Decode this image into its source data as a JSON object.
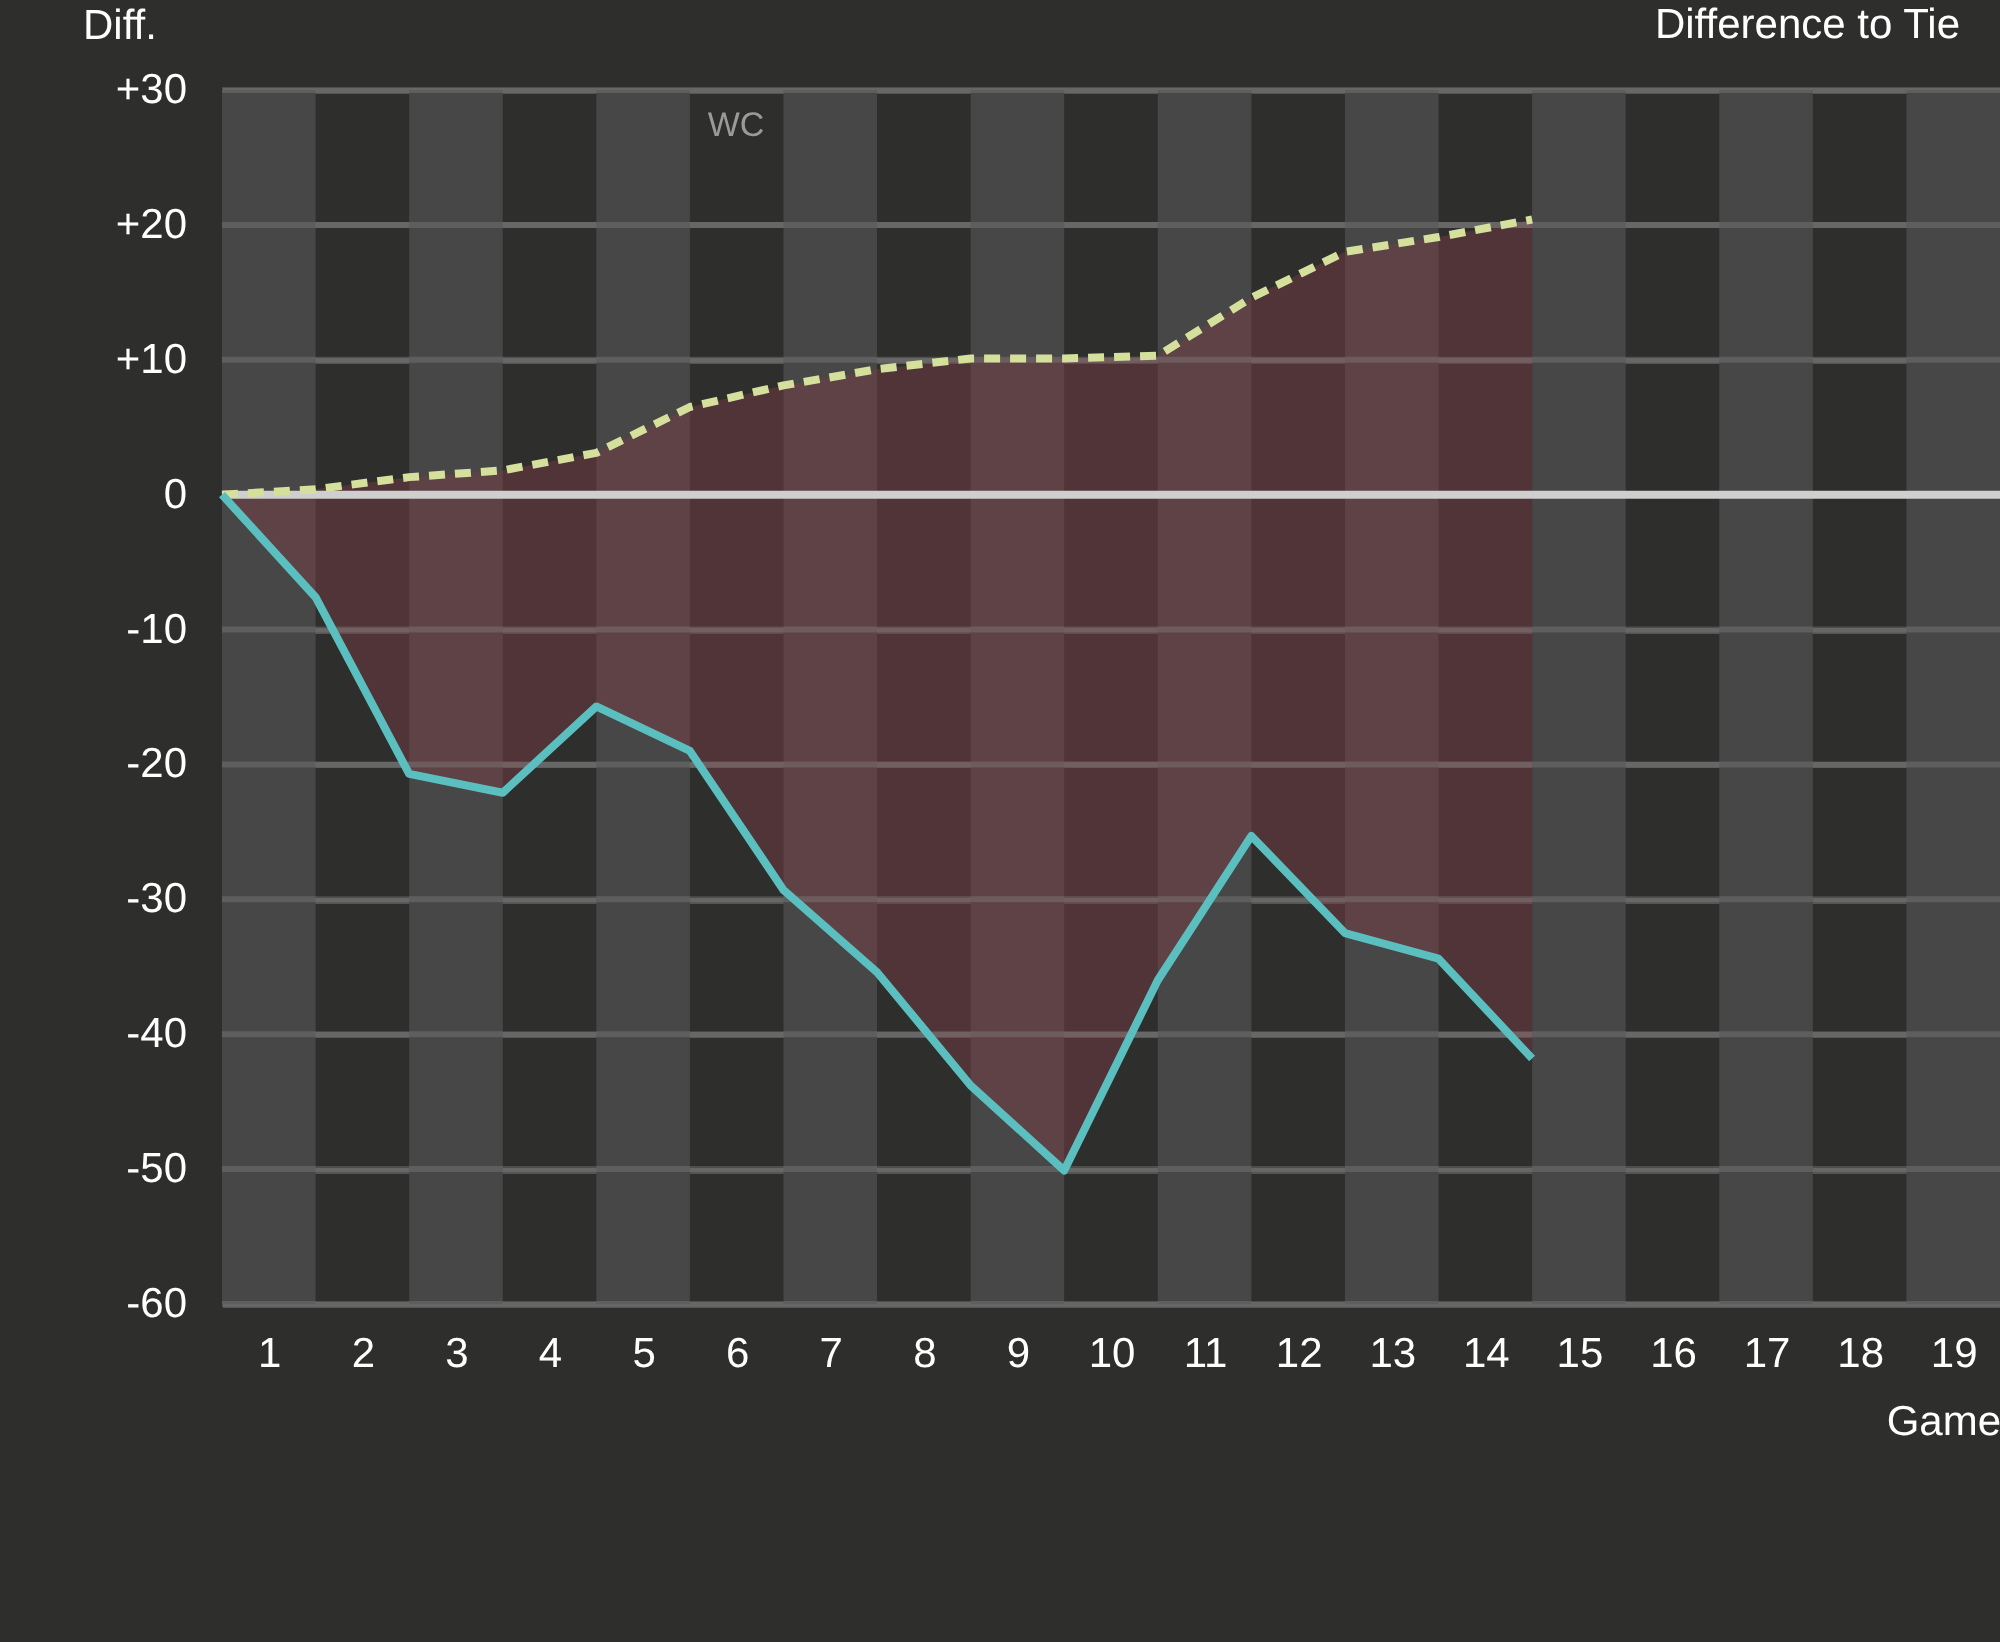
{
  "chart_data": {
    "type": "line",
    "title": "Difference to Tie",
    "xlabel": "Game",
    "ylabel": "Diff.",
    "x": [
      0,
      1,
      2,
      3,
      4,
      5,
      6,
      7,
      8,
      9,
      10,
      11,
      12,
      13,
      14
    ],
    "series": [
      {
        "color": "#d4e09b",
        "line_style": "dashed",
        "values": [
          0,
          0.4,
          1.3,
          1.8,
          3.1,
          6.5,
          8.1,
          9.3,
          10.1,
          10.1,
          10.3,
          14.6,
          18,
          19.1,
          20.4
        ],
        "lower": [
          0,
          -7.6,
          -20.7,
          -22.1,
          -15.7,
          -19,
          -29.3,
          -35.4,
          -43.8,
          -50.1,
          -36,
          -25.3,
          -32.5,
          -34.4,
          -41.8
        ],
        "upper": [
          0,
          0.4,
          1.3,
          1.8,
          3.1,
          6.5,
          8.1,
          9.3,
          10.1,
          10.1,
          10.3,
          14.6,
          18,
          19.1,
          20.4
        ]
      },
      {
        "color": "#5bbfc0",
        "line_style": "solid",
        "values": [
          0,
          -7.6,
          -20.7,
          -22.1,
          -15.7,
          -19,
          -29.3,
          -35.4,
          -43.8,
          -50.1,
          -36,
          -25.3,
          -32.5,
          -34.4,
          -41.8
        ]
      }
    ],
    "xlim": [
      0,
      19
    ],
    "xticks": [
      {
        "value": 0.5,
        "label": "1"
      },
      {
        "value": 1.5,
        "label": "2"
      },
      {
        "value": 2.5,
        "label": "3"
      },
      {
        "value": 3.5,
        "label": "4"
      },
      {
        "value": 4.5,
        "label": "5"
      },
      {
        "value": 5.5,
        "label": "6"
      },
      {
        "value": 6.5,
        "label": "7"
      },
      {
        "value": 7.5,
        "label": "8"
      },
      {
        "value": 8.5,
        "label": "9"
      },
      {
        "value": 9.5,
        "label": "10"
      },
      {
        "value": 10.5,
        "label": "11"
      },
      {
        "value": 11.5,
        "label": "12"
      },
      {
        "value": 12.5,
        "label": "13"
      },
      {
        "value": 13.5,
        "label": "14"
      },
      {
        "value": 14.5,
        "label": "15"
      },
      {
        "value": 15.5,
        "label": "16"
      },
      {
        "value": 16.5,
        "label": "17"
      },
      {
        "value": 17.5,
        "label": "18"
      },
      {
        "value": 18.5,
        "label": "19"
      }
    ],
    "ylim": [
      -60,
      30
    ],
    "yticks": [
      {
        "value": 30,
        "label": "+30"
      },
      {
        "value": 20,
        "label": "+20"
      },
      {
        "value": 10,
        "label": "+10"
      },
      0,
      -10,
      -20,
      -30,
      -40,
      -50,
      -60
    ],
    "grid": "y",
    "ref_lines": [
      {
        "axis": "y",
        "value": 0,
        "color": "#cfcfcf"
      }
    ],
    "bands": [
      {
        "axis": "x",
        "from": 0,
        "to": 1,
        "color": "#474747"
      },
      {
        "axis": "x",
        "from": 2,
        "to": 3,
        "color": "#474747"
      },
      {
        "axis": "x",
        "from": 4,
        "to": 5,
        "color": "#474747"
      },
      {
        "axis": "x",
        "from": 6,
        "to": 7,
        "color": "#474747"
      },
      {
        "axis": "x",
        "from": 8,
        "to": 9,
        "color": "#474747"
      },
      {
        "axis": "x",
        "from": 10,
        "to": 11,
        "color": "#474747"
      },
      {
        "axis": "x",
        "from": 12,
        "to": 13,
        "color": "#474747"
      },
      {
        "axis": "x",
        "from": 14,
        "to": 15,
        "color": "#474747"
      },
      {
        "axis": "x",
        "from": 16,
        "to": 17,
        "color": "#474747"
      },
      {
        "axis": "x",
        "from": 18,
        "to": 19,
        "color": "#474747"
      }
    ],
    "annotations": [
      "WC"
    ]
  }
}
